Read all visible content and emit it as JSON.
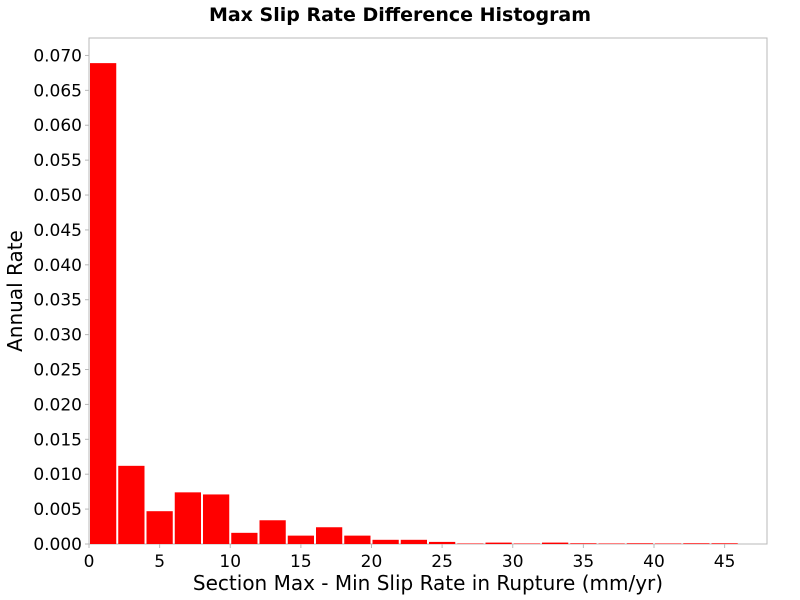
{
  "chart_data": {
    "type": "bar",
    "title": "Max Slip Rate Difference Histogram",
    "xlabel": "Section Max - Min Slip Rate in Rupture (mm/yr)",
    "ylabel": "Annual Rate",
    "xlim": [
      0,
      48
    ],
    "ylim": [
      0,
      0.0725
    ],
    "x_ticks": [
      "0",
      "5",
      "10",
      "15",
      "20",
      "25",
      "30",
      "35",
      "40",
      "45"
    ],
    "x_tick_values": [
      0,
      5,
      10,
      15,
      20,
      25,
      30,
      35,
      40,
      45
    ],
    "y_ticks": [
      "0.000",
      "0.005",
      "0.010",
      "0.015",
      "0.020",
      "0.025",
      "0.030",
      "0.035",
      "0.040",
      "0.045",
      "0.050",
      "0.055",
      "0.060",
      "0.065",
      "0.070"
    ],
    "y_tick_values": [
      0,
      0.005,
      0.01,
      0.015,
      0.02,
      0.025,
      0.03,
      0.035,
      0.04,
      0.045,
      0.05,
      0.055,
      0.06,
      0.065,
      0.07
    ],
    "bin_width": 2,
    "bins": [
      {
        "x": 1,
        "value": 0.0689
      },
      {
        "x": 3,
        "value": 0.0112
      },
      {
        "x": 5,
        "value": 0.0047
      },
      {
        "x": 7,
        "value": 0.0074
      },
      {
        "x": 9,
        "value": 0.0071
      },
      {
        "x": 11,
        "value": 0.0016
      },
      {
        "x": 13,
        "value": 0.0034
      },
      {
        "x": 15,
        "value": 0.0012
      },
      {
        "x": 17,
        "value": 0.0024
      },
      {
        "x": 19,
        "value": 0.0012
      },
      {
        "x": 21,
        "value": 0.0006
      },
      {
        "x": 23,
        "value": 0.0006
      },
      {
        "x": 25,
        "value": 0.0003
      },
      {
        "x": 27,
        "value": 5e-05
      },
      {
        "x": 29,
        "value": 0.0002
      },
      {
        "x": 31,
        "value": 5e-05
      },
      {
        "x": 33,
        "value": 0.0002
      },
      {
        "x": 35,
        "value": 0.0001
      },
      {
        "x": 37,
        "value": 3e-05
      },
      {
        "x": 39,
        "value": 0.0001
      },
      {
        "x": 41,
        "value": 3e-05
      },
      {
        "x": 43,
        "value": 0.0001
      },
      {
        "x": 45,
        "value": 0.0001
      }
    ],
    "grid": true,
    "legend": "none",
    "colors": {
      "bar": "#ff0000",
      "grid": "#e6e6e6",
      "axis": "#b8b8b8",
      "background": "#ffffff"
    }
  }
}
